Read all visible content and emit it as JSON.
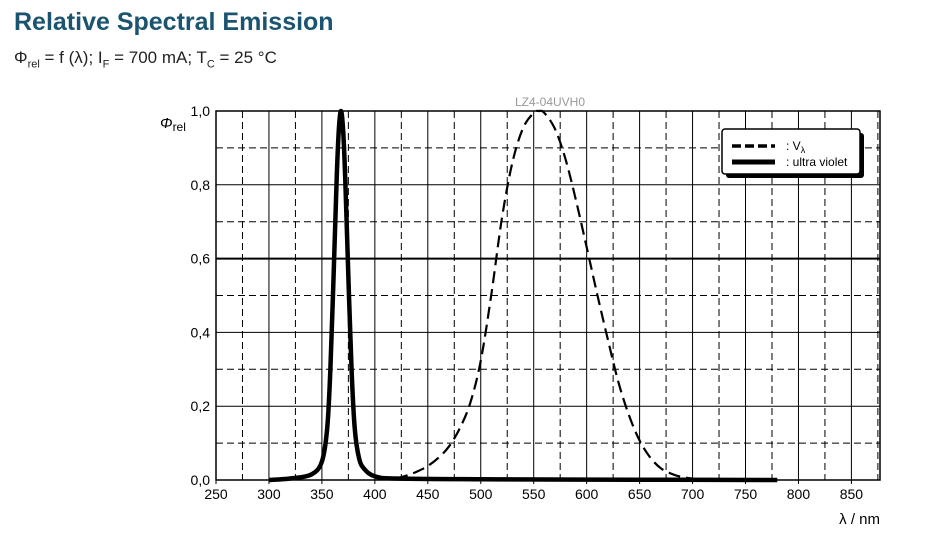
{
  "title": "Relative Spectral Emission",
  "subtitle": {
    "phi": "Φ",
    "phi_sub": "rel",
    "part1": " = f (λ); I",
    "if_sub": "F",
    "part2": " = 700 mA; T",
    "tc_sub": "C",
    "part3": " = 25 °C"
  },
  "chart_data": {
    "type": "line",
    "annotation": "LZ4-04UVH0",
    "ylabel": "Φrel",
    "ylabel_main": "Φ",
    "ylabel_sub": "rel",
    "xlabel": "λ / nm",
    "xlim": [
      250,
      877
    ],
    "ylim": [
      0,
      1
    ],
    "xticks": [
      250,
      300,
      350,
      400,
      450,
      500,
      550,
      600,
      650,
      700,
      750,
      800,
      850
    ],
    "yticks": [
      "0,0",
      "0,2",
      "0,4",
      "0,6",
      "0,8",
      "1,0"
    ],
    "grid": true,
    "legend_position": "top-right",
    "series": [
      {
        "name": "V",
        "name_sub": "λ",
        "style": "dashed",
        "x": [
          420,
          430,
          440,
          450,
          460,
          470,
          480,
          490,
          500,
          510,
          520,
          530,
          540,
          550,
          555,
          560,
          570,
          580,
          590,
          600,
          610,
          620,
          630,
          640,
          650,
          660,
          670,
          680,
          690,
          700
        ],
        "y": [
          0.004,
          0.012,
          0.023,
          0.038,
          0.06,
          0.091,
          0.139,
          0.208,
          0.323,
          0.503,
          0.71,
          0.862,
          0.954,
          0.995,
          1.0,
          0.995,
          0.952,
          0.87,
          0.757,
          0.631,
          0.503,
          0.381,
          0.265,
          0.175,
          0.107,
          0.061,
          0.032,
          0.017,
          0.008,
          0.004
        ]
      },
      {
        "name": "ultra violet",
        "style": "solid",
        "x": [
          300,
          320,
          340,
          350,
          355,
          358,
          361,
          364,
          366,
          368,
          370,
          372,
          375,
          378,
          381,
          385,
          390,
          400,
          420,
          500,
          600,
          780
        ],
        "y": [
          0,
          0.004,
          0.015,
          0.05,
          0.14,
          0.3,
          0.55,
          0.82,
          0.95,
          1.0,
          0.95,
          0.82,
          0.55,
          0.3,
          0.14,
          0.06,
          0.03,
          0.01,
          0.004,
          0.002,
          0.001,
          0
        ]
      }
    ]
  }
}
